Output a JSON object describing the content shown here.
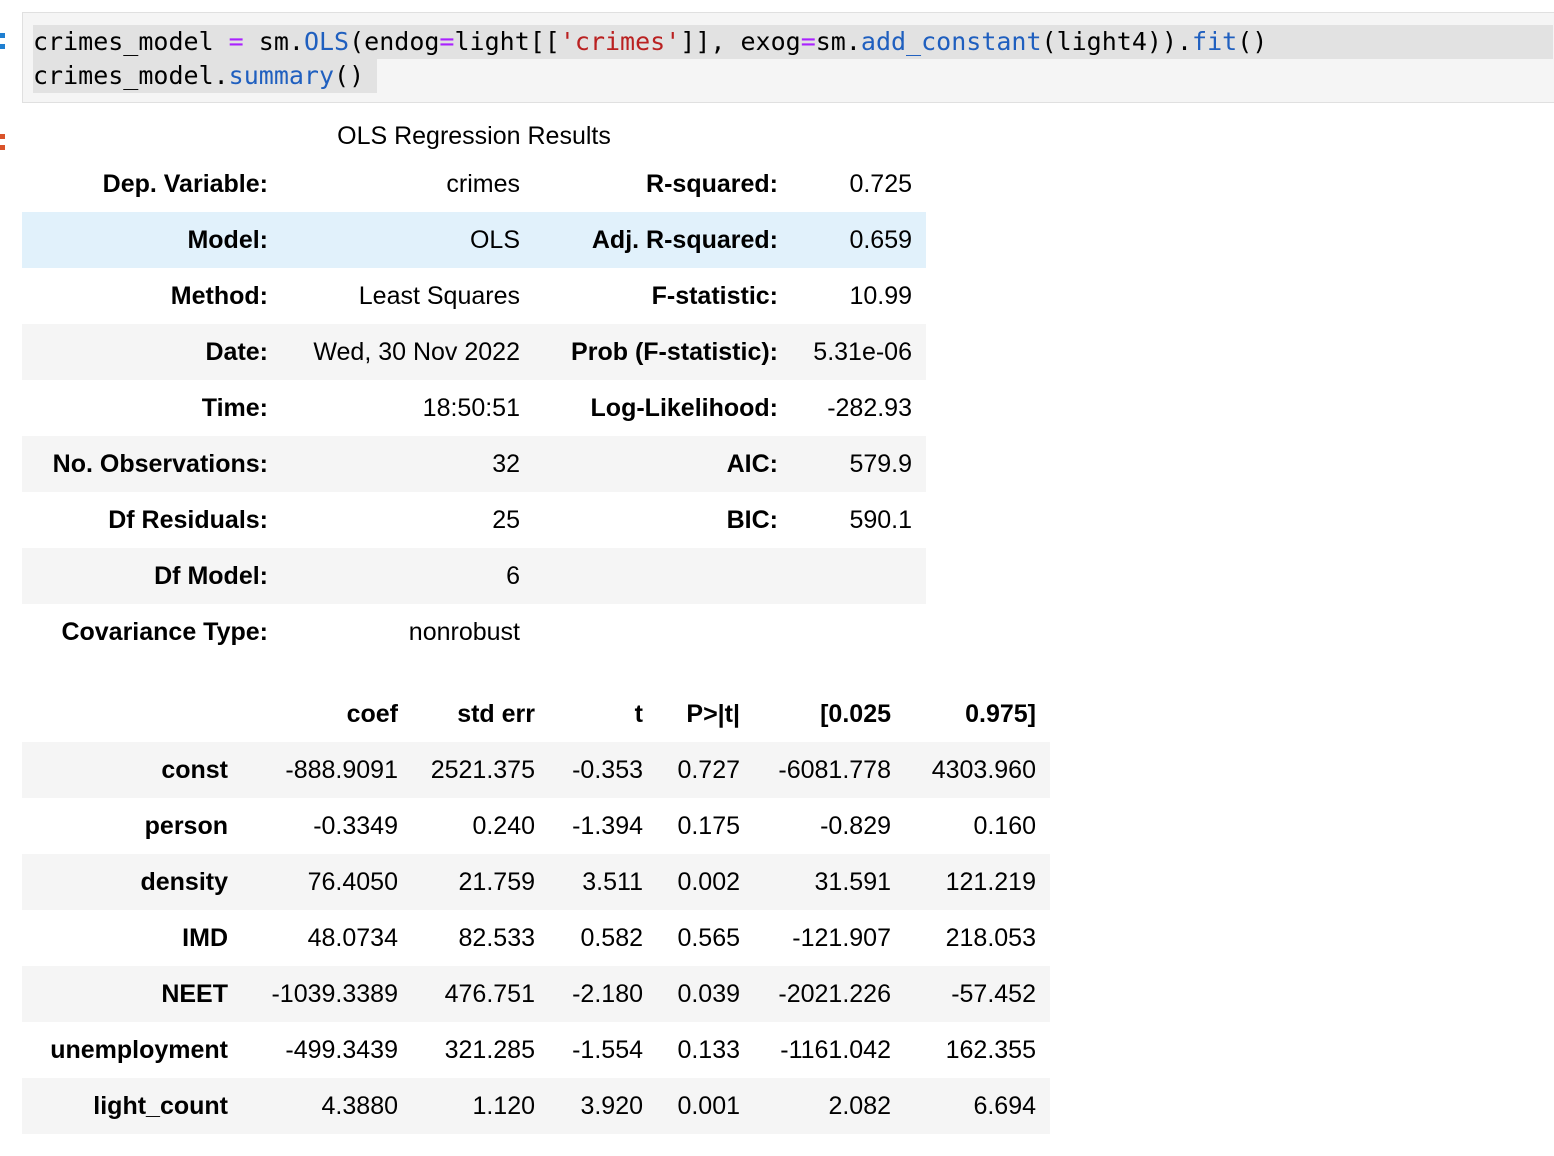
{
  "colors": {
    "prompt_in": "#1f7fd1",
    "prompt_out": "#d9532a",
    "code_keyword": "#1f5fbf",
    "code_operator": "#aa22ff",
    "code_string": "#ba2121",
    "row_stripe": "#f5f5f5",
    "row_hover": "#e1f1fb"
  },
  "code": {
    "line1": {
      "t1": "crimes_model ",
      "t2": "=",
      "t3": " sm.",
      "t4": "OLS",
      "t5": "(endog",
      "t6": "=",
      "t7": "light[[",
      "t8": "'crimes'",
      "t9": "]], exog",
      "t10": "=",
      "t11": "sm.",
      "t12": "add_constant",
      "t13": "(light4)).",
      "t14": "fit",
      "t15": "()"
    },
    "line2": {
      "t1": "crimes_model.",
      "t2": "summary",
      "t3": "()"
    }
  },
  "summary": {
    "caption": "OLS Regression Results",
    "rows": [
      [
        "Dep. Variable:",
        "crimes",
        "R-squared:",
        "0.725"
      ],
      [
        "Model:",
        "OLS",
        "Adj. R-squared:",
        "0.659"
      ],
      [
        "Method:",
        "Least Squares",
        "F-statistic:",
        "10.99"
      ],
      [
        "Date:",
        "Wed, 30 Nov 2022",
        "Prob (F-statistic):",
        "5.31e-06"
      ],
      [
        "Time:",
        "18:50:51",
        "Log-Likelihood:",
        "-282.93"
      ],
      [
        "No. Observations:",
        "32",
        "AIC:",
        "579.9"
      ],
      [
        "Df Residuals:",
        "25",
        "BIC:",
        "590.1"
      ],
      [
        "Df Model:",
        "6",
        "",
        ""
      ],
      [
        "Covariance Type:",
        "nonrobust",
        "",
        ""
      ]
    ]
  },
  "coefficients": {
    "headers": [
      "",
      "coef",
      "std err",
      "t",
      "P>|t|",
      "[0.025",
      "0.975]"
    ],
    "rows": [
      [
        "const",
        "-888.9091",
        "2521.375",
        "-0.353",
        "0.727",
        "-6081.778",
        "4303.960"
      ],
      [
        "person",
        "-0.3349",
        "0.240",
        "-1.394",
        "0.175",
        "-0.829",
        "0.160"
      ],
      [
        "density",
        "76.4050",
        "21.759",
        "3.511",
        "0.002",
        "31.591",
        "121.219"
      ],
      [
        "IMD",
        "48.0734",
        "82.533",
        "0.582",
        "0.565",
        "-121.907",
        "218.053"
      ],
      [
        "NEET",
        "-1039.3389",
        "476.751",
        "-2.180",
        "0.039",
        "-2021.226",
        "-57.452"
      ],
      [
        "unemployment",
        "-499.3439",
        "321.285",
        "-1.554",
        "0.133",
        "-1161.042",
        "162.355"
      ],
      [
        "light_count",
        "4.3880",
        "1.120",
        "3.920",
        "0.001",
        "2.082",
        "6.694"
      ]
    ]
  }
}
